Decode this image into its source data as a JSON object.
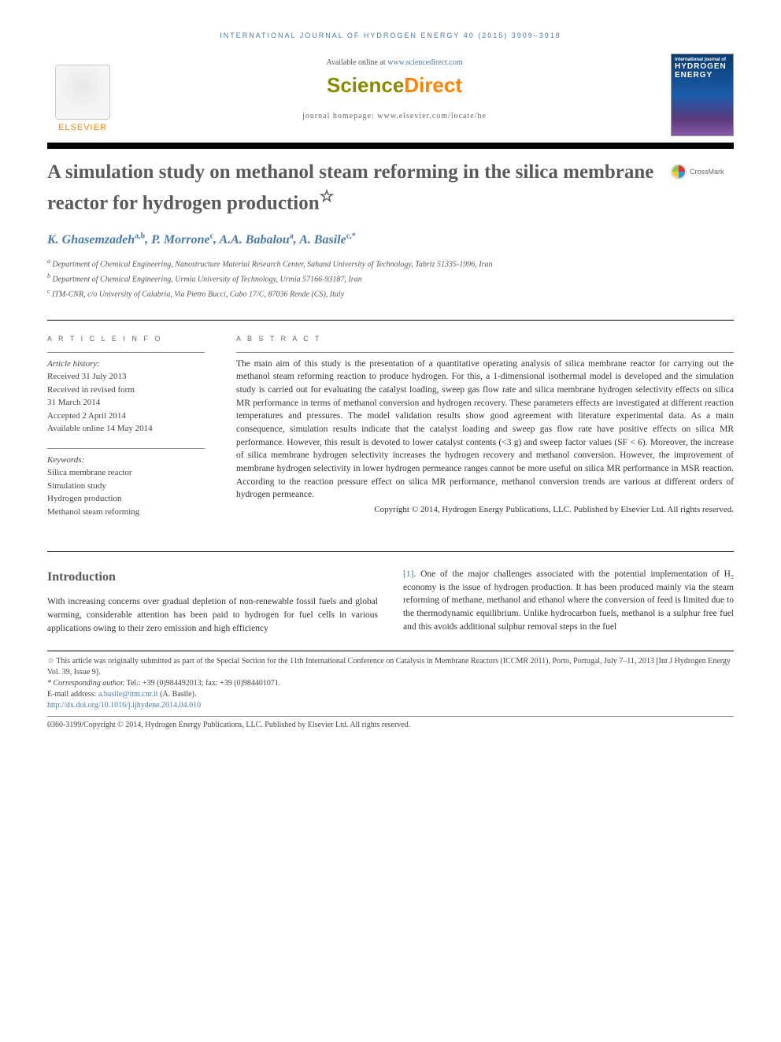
{
  "running_head": "INTERNATIONAL JOURNAL OF HYDROGEN ENERGY 40 (2015) 3909–3918",
  "header": {
    "available_prefix": "Available online at ",
    "available_link": "www.sciencedirect.com",
    "sd_sci": "Science",
    "sd_dir": "Direct",
    "homepage": "journal homepage: www.elsevier.com/locate/he",
    "elsevier": "ELSEVIER",
    "cover_line1": "international journal of",
    "cover_line2": "HYDROGEN",
    "cover_line3": "ENERGY"
  },
  "title": "A simulation study on methanol steam reforming in the silica membrane reactor for hydrogen production",
  "title_star": "☆",
  "crossmark": "CrossMark",
  "authors_html": "K. Ghasemzadeh",
  "authors": [
    {
      "name": "K. Ghasemzadeh",
      "sup": "a,b"
    },
    {
      "name": "P. Morrone",
      "sup": "c"
    },
    {
      "name": "A.A. Babalou",
      "sup": "a"
    },
    {
      "name": "A. Basile",
      "sup": "c,*"
    }
  ],
  "affiliations": [
    {
      "sup": "a",
      "text": "Department of Chemical Engineering, Nanostructure Material Research Center, Sahand University of Technology, Tabriz 51335-1996, Iran"
    },
    {
      "sup": "b",
      "text": "Department of Chemical Engineering, Urmia University of Technology, Urmia 57166-93187, Iran"
    },
    {
      "sup": "c",
      "text": "ITM-CNR, c/o University of Calabria, Via Pietro Bucci, Cubo 17/C, 87036 Rende (CS), Italy"
    }
  ],
  "info_head": "A R T I C L E  I N F O",
  "abs_head": "A B S T R A C T",
  "history_label": "Article history:",
  "history": [
    "Received 31 July 2013",
    "Received in revised form",
    "31 March 2014",
    "Accepted 2 April 2014",
    "Available online 14 May 2014"
  ],
  "keywords_label": "Keywords:",
  "keywords": [
    "Silica membrane reactor",
    "Simulation study",
    "Hydrogen production",
    "Methanol steam reforming"
  ],
  "abstract": "The main aim of this study is the presentation of a quantitative operating analysis of silica membrane reactor for carrying out the methanol steam reforming reaction to produce hydrogen. For this, a 1-dimensional isothermal model is developed and the simulation study is carried out for evaluating the catalyst loading, sweep gas flow rate and silica membrane hydrogen selectivity effects on silica MR performance in terms of methanol conversion and hydrogen recovery. These parameters effects are investigated at different reaction temperatures and pressures. The model validation results show good agreement with literature experimental data. As a main consequence, simulation results indicate that the catalyst loading and sweep gas flow rate have positive effects on silica MR performance. However, this result is devoted to lower catalyst contents (<3 g) and sweep factor values (SF < 6). Moreover, the increase of silica membrane hydrogen selectivity increases the hydrogen recovery and methanol conversion. However, the improvement of membrane hydrogen selectivity in lower hydrogen permeance ranges cannot be more useful on silica MR performance in MSR reaction. According to the reaction pressure effect on silica MR performance, methanol conversion trends are various at different orders of hydrogen permeance.",
  "copyright": "Copyright © 2014, Hydrogen Energy Publications, LLC. Published by Elsevier Ltd. All rights reserved.",
  "intro_head": "Introduction",
  "intro_p1": "With increasing concerns over gradual depletion of non-renewable fossil fuels and global warming, considerable attention has been paid to hydrogen for fuel cells in various applications owing to their zero emission and high efficiency",
  "intro_ref": "[1]",
  "intro_p2": ". One of the major challenges associated with the potential implementation of H₂ economy is the issue of hydrogen production. It has been produced mainly via the steam reforming of methane, methanol and ethanol where the conversion of feed is limited due to the thermodynamic equilibrium. Unlike hydrocarbon fuels, methanol is a sulphur free fuel and this avoids additional sulphur removal steps in the fuel",
  "footnotes": {
    "star": "☆ This article was originally submitted as part of the Special Section for the 11th International Conference on Catalysis in Membrane Reactors (ICCMR 2011), Porto, Portugal, July 7–11, 2013 [Int J Hydrogen Energy Vol. 39, Issue 9].",
    "corr_label": "* Corresponding author.",
    "corr_detail": " Tel.: +39 (0)984492013; fax: +39 (0)984401071.",
    "email_label": "E-mail address: ",
    "email": "a.basile@itm.cnr.it",
    "email_suffix": " (A. Basile).",
    "doi": "http://dx.doi.org/10.1016/j.ijhydene.2014.04.010",
    "footer": "0360-3199/Copyright © 2014, Hydrogen Energy Publications, LLC. Published by Elsevier Ltd. All rights reserved."
  },
  "colors": {
    "link": "#4a7ba6",
    "heading": "#5a5a5a",
    "orange": "#ff8200"
  }
}
